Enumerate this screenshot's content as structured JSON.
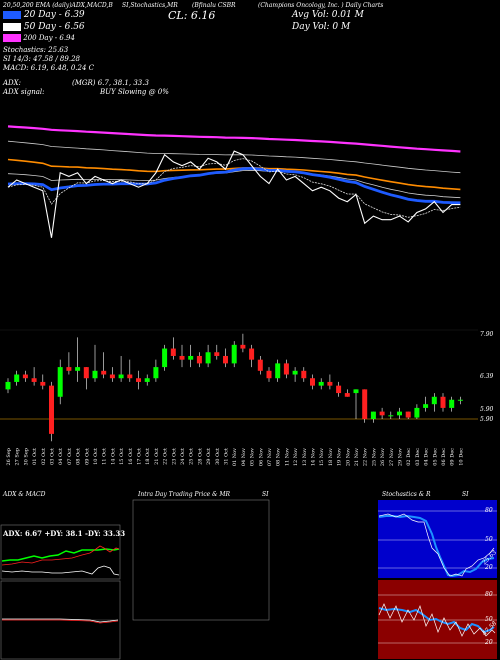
{
  "header": {
    "ticker_line": "20,50,200 EMA (daily)ADX,MACD,B",
    "ticker_mid": "SI,Stochastics,MR",
    "ticker_name": "(Bfinalu CSBR",
    "company": "(Champions Oncology, Inc. ) Daily Charts",
    "close_label": "CL: 6.16",
    "avg_vol": "Avg Vol: 0.01 M",
    "day_vol": "Day Vol: 0   M",
    "ema20": "20   Day - 6.39",
    "ema50": "50   Day - 6.56",
    "ema200": "200  Day - 6.94",
    "stoch": "Stochastics: 25.63",
    "si": "SI  14/3: 47.58  / 89.28",
    "macd": "MACD: 6.19,  6.48,  0.24  C",
    "adx": "ADX:",
    "adx_vals": "(MGR) 6.7, 38.1, 33.3",
    "adx_signal": "ADX  signal:",
    "buy_signal": "BUY Slowing @ 0%"
  },
  "price_axis": {
    "top_label": "7.90",
    "mid_label": "6.39",
    "bottom_label": "5.90",
    "bottom_label2": "5.90"
  },
  "colors": {
    "ema20": "#1e5bff",
    "ema50": "#ff8c00",
    "ema200": "#ff33ff",
    "price": "#ffffff",
    "up": "#00ff00",
    "down": "#ff2020",
    "ref": "#a07000"
  },
  "dates": [
    "26 Sep",
    "27 Sep",
    "30 Sep",
    "01 Oct",
    "02 Oct",
    "03 Oct",
    "04 Oct",
    "07 Oct",
    "08 Oct",
    "09 Oct",
    "10 Oct",
    "11 Oct",
    "14 Oct",
    "15 Oct",
    "16 Oct",
    "17 Oct",
    "18 Oct",
    "21 Oct",
    "22 Oct",
    "23 Oct",
    "24 Oct",
    "25 Oct",
    "28 Oct",
    "29 Oct",
    "30 Oct",
    "31 Oct",
    "01 Nov",
    "04 Nov",
    "05 Nov",
    "06 Nov",
    "07 Nov",
    "08 Nov",
    "11 Nov",
    "12 Nov",
    "13 Nov",
    "14 Nov",
    "15 Nov",
    "18 Nov",
    "19 Nov",
    "20 Nov",
    "21 Nov",
    "22 Nov",
    "25 Nov",
    "26 Nov",
    "27 Nov",
    "29 Nov",
    "02 Dec",
    "03 Dec",
    "04 Dec",
    "05 Dec",
    "06 Dec",
    "09 Dec",
    "10 Dec"
  ],
  "chart_data": {
    "type": "candlestick",
    "ref_line": 5.9,
    "candles": [
      [
        6.3,
        6.45,
        6.25,
        6.4
      ],
      [
        6.4,
        6.55,
        6.35,
        6.5
      ],
      [
        6.5,
        6.55,
        6.4,
        6.45
      ],
      [
        6.45,
        6.6,
        6.35,
        6.4
      ],
      [
        6.4,
        6.5,
        6.3,
        6.35
      ],
      [
        6.35,
        6.4,
        5.6,
        5.7
      ],
      [
        6.2,
        6.7,
        6.1,
        6.6
      ],
      [
        6.6,
        6.8,
        6.5,
        6.55
      ],
      [
        6.55,
        7.0,
        6.4,
        6.6
      ],
      [
        6.6,
        6.6,
        6.3,
        6.45
      ],
      [
        6.45,
        6.9,
        6.4,
        6.55
      ],
      [
        6.55,
        6.8,
        6.45,
        6.5
      ],
      [
        6.5,
        6.6,
        6.4,
        6.45
      ],
      [
        6.45,
        6.75,
        6.4,
        6.5
      ],
      [
        6.5,
        6.7,
        6.4,
        6.45
      ],
      [
        6.45,
        6.55,
        6.3,
        6.4
      ],
      [
        6.4,
        6.5,
        6.35,
        6.45
      ],
      [
        6.45,
        6.7,
        6.4,
        6.6
      ],
      [
        6.6,
        6.9,
        6.55,
        6.85
      ],
      [
        6.85,
        7.0,
        6.7,
        6.75
      ],
      [
        6.75,
        6.9,
        6.6,
        6.7
      ],
      [
        6.7,
        6.9,
        6.6,
        6.75
      ],
      [
        6.75,
        6.8,
        6.6,
        6.65
      ],
      [
        6.65,
        6.9,
        6.6,
        6.8
      ],
      [
        6.8,
        6.9,
        6.7,
        6.75
      ],
      [
        6.75,
        6.85,
        6.6,
        6.65
      ],
      [
        6.65,
        6.95,
        6.6,
        6.9
      ],
      [
        6.9,
        7.05,
        6.8,
        6.85
      ],
      [
        6.85,
        6.9,
        6.6,
        6.7
      ],
      [
        6.7,
        6.75,
        6.5,
        6.55
      ],
      [
        6.55,
        6.6,
        6.4,
        6.45
      ],
      [
        6.45,
        6.7,
        6.4,
        6.65
      ],
      [
        6.65,
        6.7,
        6.45,
        6.5
      ],
      [
        6.5,
        6.6,
        6.4,
        6.55
      ],
      [
        6.55,
        6.6,
        6.4,
        6.45
      ],
      [
        6.45,
        6.5,
        6.3,
        6.35
      ],
      [
        6.35,
        6.45,
        6.3,
        6.4
      ],
      [
        6.4,
        6.5,
        6.3,
        6.35
      ],
      [
        6.35,
        6.4,
        6.2,
        6.25
      ],
      [
        6.25,
        6.3,
        6.2,
        6.2
      ],
      [
        6.25,
        6.3,
        5.9,
        6.3
      ],
      [
        6.3,
        6.3,
        5.85,
        5.9
      ],
      [
        5.9,
        6.0,
        5.85,
        6.0
      ],
      [
        6.0,
        6.05,
        5.9,
        5.95
      ],
      [
        5.95,
        6.0,
        5.9,
        5.95
      ],
      [
        5.95,
        6.05,
        5.9,
        6.0
      ],
      [
        6.0,
        6.0,
        5.9,
        5.92
      ],
      [
        5.92,
        6.1,
        5.9,
        6.05
      ],
      [
        6.05,
        6.2,
        6.0,
        6.1
      ],
      [
        6.1,
        6.25,
        6.0,
        6.2
      ],
      [
        6.2,
        6.25,
        6.0,
        6.05
      ],
      [
        6.05,
        6.2,
        6.0,
        6.16
      ],
      [
        6.16,
        6.2,
        6.1,
        6.16
      ]
    ]
  },
  "panels": {
    "adx_title": "ADX  & MACD",
    "adx_box": "ADX: 6.67  +DY: 38.1 -DY: 33.33",
    "intra_title": "Intra  Day Trading Price  & MR",
    "intra_si": "SI",
    "stoch_title": "Stochastics & R",
    "stoch_si": "SI",
    "stoch_ticks": [
      "80",
      "50",
      "20"
    ],
    "si_ticks": [
      "80",
      "50",
      "20"
    ],
    "stoch_value": "25.63",
    "si_value": "47.58"
  }
}
